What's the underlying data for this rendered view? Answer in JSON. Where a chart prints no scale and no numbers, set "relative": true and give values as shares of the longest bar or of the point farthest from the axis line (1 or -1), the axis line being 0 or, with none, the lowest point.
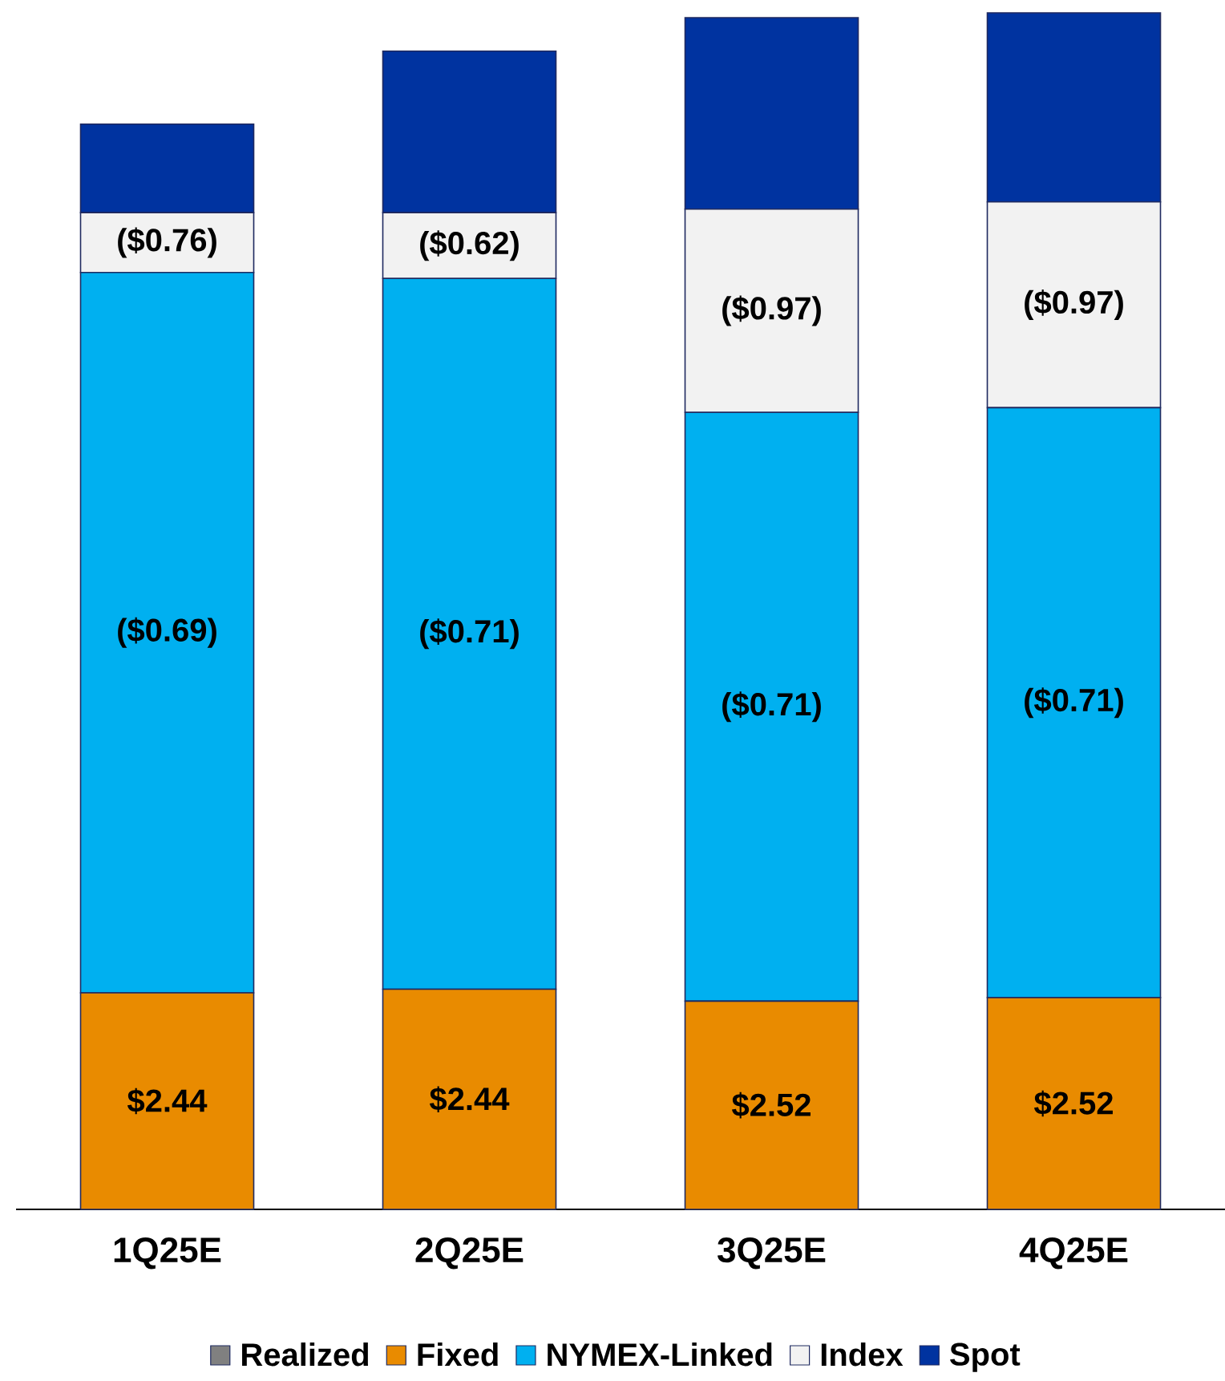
{
  "chart_data": {
    "type": "bar",
    "stacked": true,
    "relative": true,
    "legend": "bottom",
    "categories": [
      "1Q25E",
      "2Q25E",
      "3Q25E",
      "4Q25E"
    ],
    "series": [
      {
        "name": "Realized",
        "color": "#808080",
        "values": [
          null,
          null,
          null,
          null
        ]
      },
      {
        "name": "Fixed",
        "color": "#e98b00",
        "values": [
          0.181,
          0.184,
          0.174,
          0.177
        ]
      },
      {
        "name": "NYMEX-Linked",
        "color": "#00b0f0",
        "values": [
          0.602,
          0.594,
          0.492,
          0.493
        ]
      },
      {
        "name": "Index",
        "color": "#f2f2f2",
        "values": [
          0.05,
          0.055,
          0.17,
          0.172
        ]
      },
      {
        "name": "Spot",
        "color": "#0033a0",
        "values": [
          0.074,
          0.135,
          0.16,
          0.158
        ]
      }
    ],
    "annotations": [
      "$2.44",
      "$2.44",
      "$2.52",
      "$2.52",
      "($0.69)",
      "($0.71)",
      "($0.71)",
      "($0.71)",
      "($0.76)",
      "($0.62)",
      "($0.97)",
      "($0.97)"
    ]
  }
}
